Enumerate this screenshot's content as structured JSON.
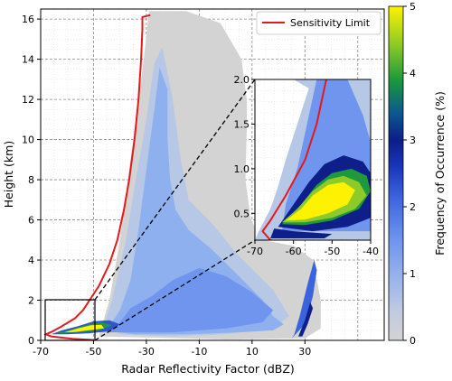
{
  "chart_data": {
    "type": "heatmap",
    "xlabel": "Radar Reflectivity Factor (dBZ)",
    "ylabel": "Height (km)",
    "xlim": [
      -70,
      60
    ],
    "ylim": [
      0,
      16.5
    ],
    "xticks": [
      -70,
      -50,
      -30,
      -10,
      10,
      30
    ],
    "yticks": [
      0,
      2,
      4,
      6,
      8,
      10,
      12,
      14,
      16
    ],
    "grid": true,
    "legend": {
      "position": "top-right",
      "entries": [
        "Sensitivity Limit"
      ]
    },
    "colorbar": {
      "label": "Frequency of Occurrence (%)",
      "range": [
        0,
        5
      ],
      "ticks": [
        0,
        1,
        2,
        3,
        4,
        5
      ],
      "colormap": [
        "#d3d3d3",
        "#b7c7e6",
        "#87a8ee",
        "#5680ea",
        "#2f55d0",
        "#0e1f8a",
        "#0a5f8a",
        "#1e9a3c",
        "#8ccb2a",
        "#fff200"
      ]
    },
    "sensitivity_limit": {
      "name": "Sensitivity Limit",
      "color": "#e31a1c",
      "points": [
        [
          -50,
          0.02
        ],
        [
          -58,
          0.08
        ],
        [
          -66,
          0.2
        ],
        [
          -68,
          0.3
        ],
        [
          -66,
          0.42
        ],
        [
          -62,
          0.7
        ],
        [
          -57,
          1.1
        ],
        [
          -54,
          1.5
        ],
        [
          -51.5,
          2.0
        ],
        [
          -48,
          2.7
        ],
        [
          -44,
          3.8
        ],
        [
          -41,
          5.0
        ],
        [
          -38.5,
          6.5
        ],
        [
          -36.5,
          8.0
        ],
        [
          -34.5,
          10.0
        ],
        [
          -33,
          12.0
        ],
        [
          -32,
          14.0
        ],
        [
          -31.5,
          15.5
        ],
        [
          -31.5,
          16.1
        ],
        [
          -28.5,
          16.2
        ]
      ]
    },
    "inset": {
      "xlim": [
        -70,
        -40
      ],
      "ylim": [
        0.2,
        2.0
      ],
      "xticks": [
        -70,
        -60,
        -50,
        -40
      ],
      "yticks": [
        0.5,
        1.0,
        1.5,
        2.0
      ],
      "ytick_labels": [
        "0.5",
        "1.0",
        "1.5",
        "2.0"
      ]
    }
  }
}
